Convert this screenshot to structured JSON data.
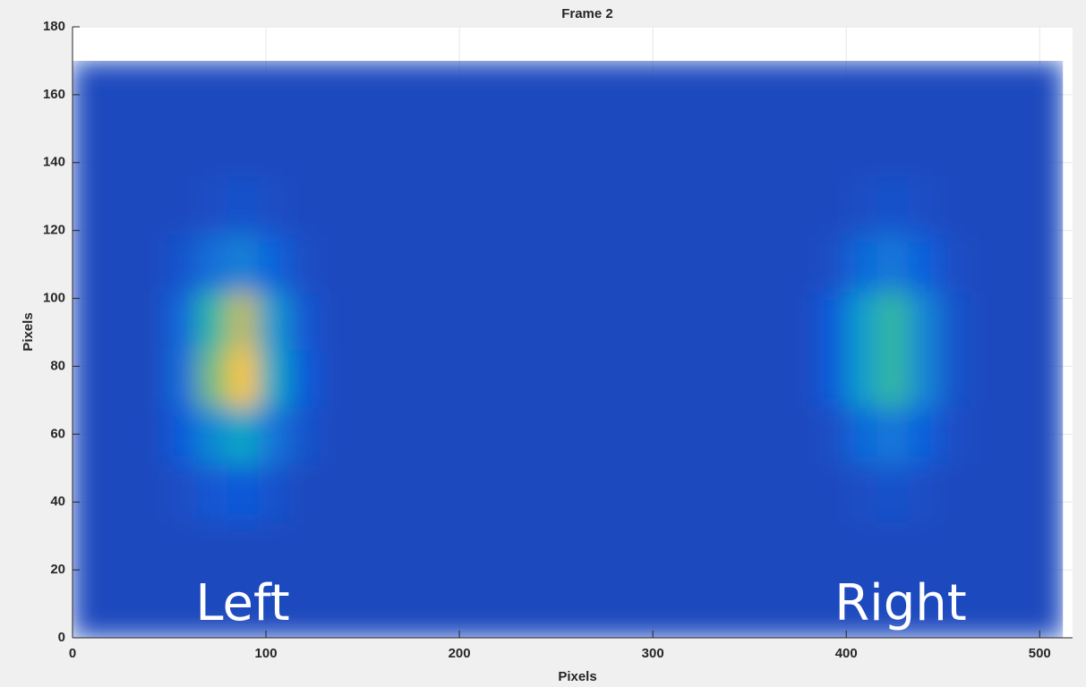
{
  "chart_data": {
    "type": "heatmap",
    "title": "Frame 2",
    "xlabel": "Pixels",
    "ylabel": "Pixels",
    "annotations": [
      "Left",
      "Right"
    ],
    "x": [
      8,
      24,
      40,
      56,
      72,
      88,
      104,
      120,
      136,
      152,
      168,
      184,
      200,
      216,
      232,
      248,
      264,
      280,
      296,
      312,
      328,
      344,
      360,
      376,
      392,
      408,
      424,
      440,
      456,
      472,
      488,
      504
    ],
    "y": [
      8.5,
      25.5,
      42.5,
      59.5,
      76.5,
      93.5,
      110.5,
      127.5,
      144.5,
      161.5
    ],
    "z": [
      [
        0.08,
        0.08,
        0.08,
        0.08,
        0.08,
        0.08,
        0.08,
        0.08,
        0.08,
        0.08,
        0.08,
        0.08,
        0.08,
        0.08,
        0.08,
        0.08,
        0.08,
        0.08,
        0.08,
        0.08,
        0.08,
        0.08,
        0.08,
        0.08,
        0.08,
        0.08,
        0.08,
        0.08,
        0.08,
        0.08,
        0.08,
        0.08
      ],
      [
        0.08,
        0.08,
        0.08,
        0.08,
        0.08,
        0.08,
        0.08,
        0.08,
        0.08,
        0.08,
        0.08,
        0.08,
        0.08,
        0.08,
        0.08,
        0.08,
        0.08,
        0.08,
        0.08,
        0.08,
        0.08,
        0.08,
        0.08,
        0.08,
        0.08,
        0.08,
        0.08,
        0.08,
        0.08,
        0.08,
        0.08,
        0.08
      ],
      [
        0.08,
        0.08,
        0.08,
        0.09,
        0.11,
        0.12,
        0.1,
        0.08,
        0.08,
        0.08,
        0.08,
        0.08,
        0.08,
        0.08,
        0.08,
        0.08,
        0.08,
        0.08,
        0.08,
        0.08,
        0.08,
        0.08,
        0.08,
        0.08,
        0.08,
        0.09,
        0.1,
        0.09,
        0.08,
        0.08,
        0.08,
        0.08
      ],
      [
        0.08,
        0.08,
        0.08,
        0.12,
        0.28,
        0.39,
        0.21,
        0.1,
        0.08,
        0.08,
        0.08,
        0.08,
        0.08,
        0.08,
        0.08,
        0.08,
        0.08,
        0.08,
        0.08,
        0.08,
        0.08,
        0.08,
        0.08,
        0.08,
        0.09,
        0.17,
        0.22,
        0.14,
        0.09,
        0.08,
        0.08,
        0.08
      ],
      [
        0.08,
        0.08,
        0.08,
        0.17,
        0.6,
        0.86,
        0.4,
        0.12,
        0.08,
        0.08,
        0.08,
        0.08,
        0.08,
        0.08,
        0.08,
        0.08,
        0.08,
        0.08,
        0.08,
        0.08,
        0.08,
        0.08,
        0.08,
        0.08,
        0.12,
        0.35,
        0.51,
        0.27,
        0.1,
        0.08,
        0.08,
        0.08
      ],
      [
        0.08,
        0.08,
        0.08,
        0.16,
        0.5,
        0.72,
        0.34,
        0.11,
        0.08,
        0.08,
        0.08,
        0.08,
        0.08,
        0.08,
        0.08,
        0.08,
        0.08,
        0.08,
        0.08,
        0.08,
        0.08,
        0.08,
        0.08,
        0.08,
        0.12,
        0.35,
        0.51,
        0.27,
        0.1,
        0.08,
        0.08,
        0.08
      ],
      [
        0.08,
        0.08,
        0.08,
        0.1,
        0.19,
        0.25,
        0.15,
        0.09,
        0.08,
        0.08,
        0.08,
        0.08,
        0.08,
        0.08,
        0.08,
        0.08,
        0.08,
        0.08,
        0.08,
        0.08,
        0.08,
        0.08,
        0.08,
        0.08,
        0.09,
        0.17,
        0.22,
        0.14,
        0.09,
        0.08,
        0.08,
        0.08
      ],
      [
        0.08,
        0.08,
        0.08,
        0.08,
        0.09,
        0.1,
        0.09,
        0.08,
        0.08,
        0.08,
        0.08,
        0.08,
        0.08,
        0.08,
        0.08,
        0.08,
        0.08,
        0.08,
        0.08,
        0.08,
        0.08,
        0.08,
        0.08,
        0.08,
        0.08,
        0.09,
        0.1,
        0.09,
        0.08,
        0.08,
        0.08,
        0.08
      ],
      [
        0.08,
        0.08,
        0.08,
        0.08,
        0.08,
        0.08,
        0.08,
        0.08,
        0.08,
        0.08,
        0.08,
        0.08,
        0.08,
        0.08,
        0.08,
        0.08,
        0.08,
        0.08,
        0.08,
        0.08,
        0.08,
        0.08,
        0.08,
        0.08,
        0.08,
        0.08,
        0.08,
        0.08,
        0.08,
        0.08,
        0.08,
        0.08
      ],
      [
        0.08,
        0.08,
        0.08,
        0.08,
        0.08,
        0.08,
        0.08,
        0.08,
        0.08,
        0.08,
        0.08,
        0.08,
        0.08,
        0.08,
        0.08,
        0.08,
        0.08,
        0.08,
        0.08,
        0.08,
        0.08,
        0.08,
        0.08,
        0.08,
        0.08,
        0.08,
        0.08,
        0.08,
        0.08,
        0.08,
        0.08,
        0.08
      ]
    ],
    "clim": [
      0,
      1
    ],
    "colormap": [
      "#352a87",
      "#0f5cdd",
      "#1481d6",
      "#06a4ca",
      "#2eb7a4",
      "#87bf77",
      "#d1bb59",
      "#fec832",
      "#f9fb0e"
    ],
    "xlim": [
      0,
      517
    ],
    "ylim": [
      0,
      180
    ],
    "xticks": [
      0,
      100,
      200,
      300,
      400,
      500
    ],
    "yticks": [
      0,
      20,
      40,
      60,
      80,
      100,
      120,
      140,
      160,
      180
    ],
    "grid": true
  }
}
